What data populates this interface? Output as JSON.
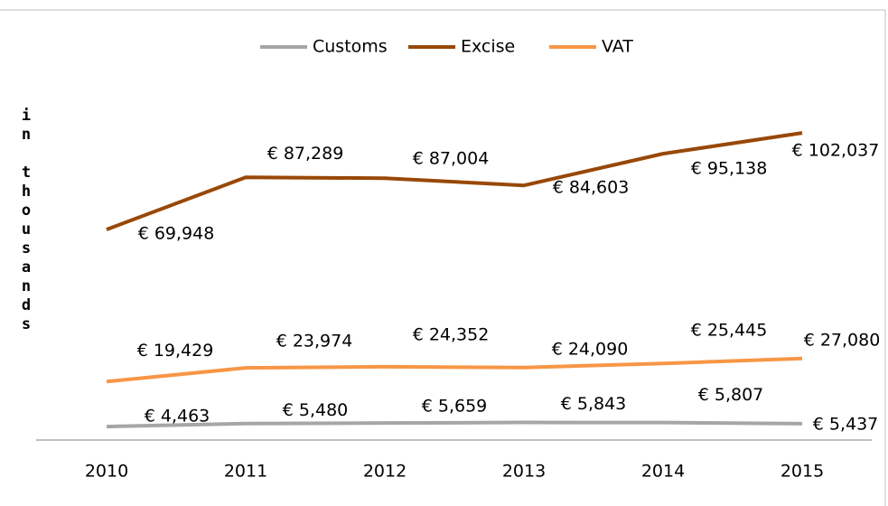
{
  "chart_data": {
    "type": "line",
    "y_label": "in thousands",
    "categories": [
      "2010",
      "2011",
      "2012",
      "2013",
      "2014",
      "2015"
    ],
    "series": [
      {
        "name": "Customs",
        "color": "#a6a6a6",
        "values": [
          4463,
          5480,
          5659,
          5843,
          5807,
          5437
        ],
        "value_labels": [
          "€ 4,463",
          "€ 5,480",
          "€ 5,659",
          "€ 5,843",
          "€ 5,807",
          "€ 5,437"
        ]
      },
      {
        "name": "Excise",
        "color": "#984807",
        "values": [
          69948,
          87289,
          87004,
          84603,
          95138,
          102037
        ],
        "value_labels": [
          "€ 69,948",
          "€ 87,289",
          "€ 87,004",
          "€ 84,603",
          "€ 95,138",
          "€ 102,037"
        ]
      },
      {
        "name": "VAT",
        "color": "#f79646",
        "values": [
          19429,
          23974,
          24352,
          24090,
          25445,
          27080
        ],
        "value_labels": [
          "€ 19,429",
          "€ 23,974",
          "€ 24,352",
          "€ 24,090",
          "€ 25,445",
          "€ 27,080"
        ]
      }
    ],
    "ylim": [
      0,
      130000
    ],
    "legend": "top"
  }
}
